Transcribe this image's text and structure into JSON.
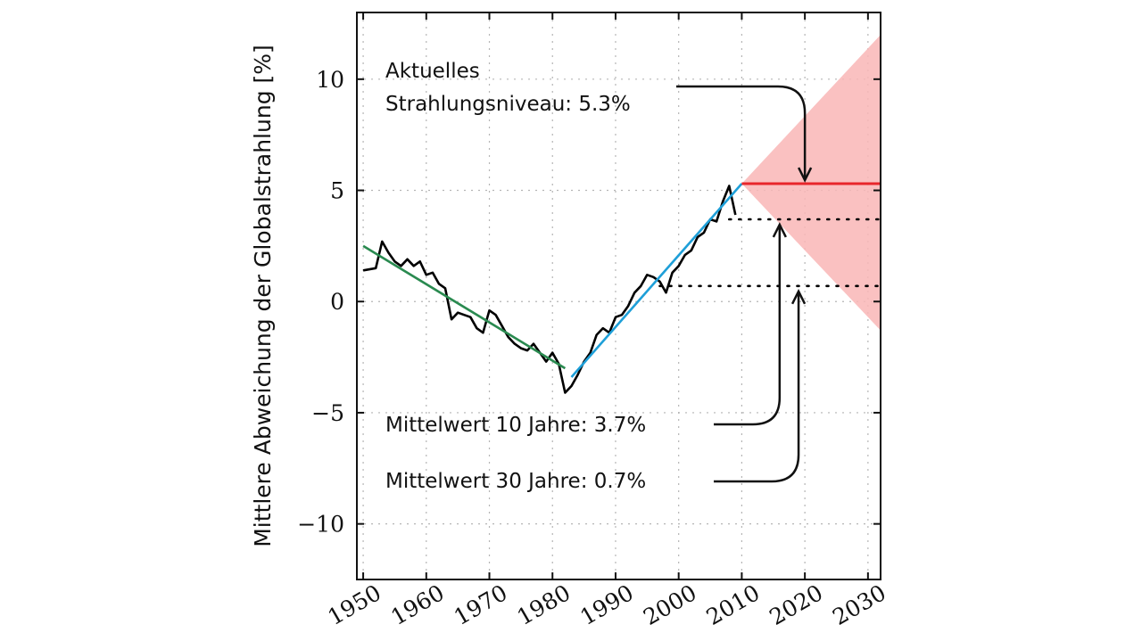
{
  "chart_data": {
    "type": "line",
    "title": "",
    "xlabel": "",
    "ylabel": "Mittlere Abweichung der Globalstrahlung [%]",
    "xlim": [
      1949,
      2032
    ],
    "ylim": [
      -12.5,
      13
    ],
    "x_ticks": [
      1950,
      1960,
      1970,
      1980,
      1990,
      2000,
      2010,
      2020,
      2030
    ],
    "y_ticks": [
      -10,
      -5,
      0,
      5,
      10
    ],
    "y_tick_labels": [
      "−10",
      "−5",
      "0",
      "5",
      "10"
    ],
    "grid": true,
    "series": [
      {
        "color": "#000000",
        "x": [
          1950,
          1952,
          1953,
          1954,
          1955,
          1956,
          1957,
          1958,
          1959,
          1960,
          1961,
          1962,
          1963,
          1964,
          1965,
          1966,
          1967,
          1968,
          1969,
          1970,
          1971,
          1972,
          1973,
          1974,
          1975,
          1976,
          1977,
          1978,
          1979,
          1980,
          1981,
          1982,
          1983,
          1984,
          1985,
          1986,
          1987,
          1988,
          1989,
          1990,
          1991,
          1992,
          1993,
          1994,
          1995,
          1996,
          1997,
          1998,
          1999,
          2000,
          2001,
          2002,
          2003,
          2004,
          2005,
          2006,
          2007,
          2008,
          2009
        ],
        "y": [
          1.4,
          1.5,
          2.7,
          2.2,
          1.8,
          1.6,
          1.9,
          1.6,
          1.8,
          1.2,
          1.3,
          0.8,
          0.6,
          -0.8,
          -0.5,
          -0.6,
          -0.7,
          -1.2,
          -1.4,
          -0.4,
          -0.6,
          -1.1,
          -1.6,
          -1.9,
          -2.1,
          -2.2,
          -1.9,
          -2.3,
          -2.7,
          -2.3,
          -2.8,
          -4.1,
          -3.8,
          -3.3,
          -2.7,
          -2.3,
          -1.5,
          -1.2,
          -1.4,
          -0.7,
          -0.6,
          -0.2,
          0.4,
          0.7,
          1.2,
          1.1,
          0.9,
          0.4,
          1.3,
          1.6,
          2.1,
          2.3,
          2.9,
          3.1,
          3.7,
          3.6,
          4.5,
          5.2,
          3.9
        ]
      },
      {
        "color": "#2a8a50",
        "x": [
          1950,
          1982
        ],
        "y": [
          2.5,
          -3.0
        ]
      },
      {
        "color": "#1e9fd8",
        "x": [
          1983,
          2010
        ],
        "y": [
          -3.4,
          5.3
        ]
      },
      {
        "color": "#e8262b",
        "x": [
          2010,
          2032
        ],
        "y": [
          5.3,
          5.3
        ]
      },
      {
        "color": "#000000",
        "x": [
          2008,
          2032
        ],
        "y": [
          3.7,
          3.7
        ]
      },
      {
        "color": "#000000",
        "x": [
          1997,
          2032
        ],
        "y": [
          0.7,
          0.7
        ]
      }
    ],
    "projection_band": {
      "color": "#f9b6b6",
      "apex": [
        2010,
        5.3
      ],
      "upper_end": [
        2032,
        12.0
      ],
      "lower_end": [
        2032,
        -1.3
      ]
    },
    "annotations": [
      {
        "lines": [
          "Aktuelles",
          "Strahlungsniveau: 5.3%"
        ],
        "target": [
          2020,
          5.3
        ]
      },
      {
        "lines": [
          "Mittelwert 10 Jahre: 3.7%"
        ],
        "target": [
          2016,
          3.7
        ]
      },
      {
        "lines": [
          "Mittelwert 30 Jahre: 0.7%"
        ],
        "target": [
          2019,
          0.7
        ]
      }
    ]
  }
}
